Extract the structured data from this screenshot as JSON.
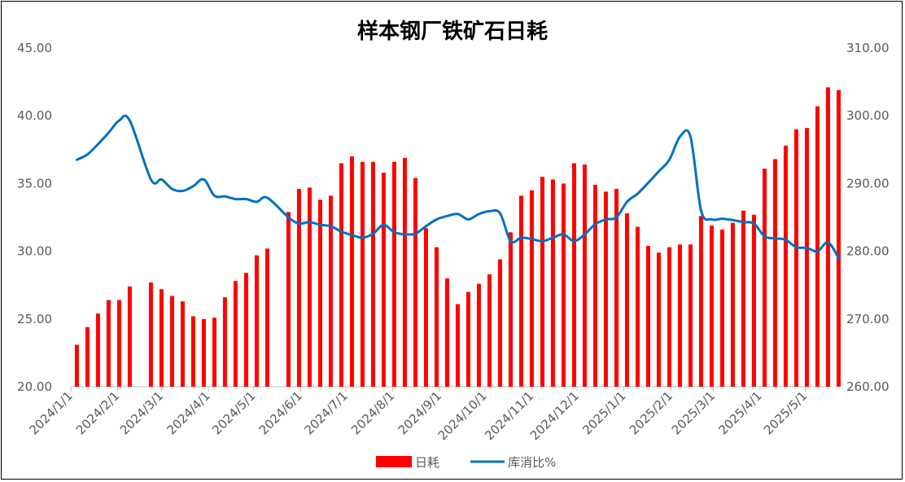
{
  "chart_data": {
    "type": "bar+line",
    "title": "样本钢厂铁矿石日耗",
    "left_axis": {
      "min": 20,
      "max": 45,
      "ticks": [
        "20.00",
        "25.00",
        "30.00",
        "35.00",
        "40.00",
        "45.00"
      ]
    },
    "right_axis": {
      "min": 260,
      "max": 310,
      "ticks": [
        "260.00",
        "270.00",
        "280.00",
        "290.00",
        "300.00",
        "310.00"
      ]
    },
    "x_range": [
      "2024-01-01",
      "2025-05-19"
    ],
    "x_ticks": [
      "2024/1/1",
      "2024/2/1",
      "2024/3/1",
      "2024/4/1",
      "2024/5/1",
      "2024/6/1",
      "2024/7/1",
      "2024/8/1",
      "2024/9/1",
      "2024/10/1",
      "2024/11/1",
      "2024/12/1",
      "2025/1/1",
      "2025/2/1",
      "2025/3/1",
      "2025/4/1",
      "2025/5/1"
    ],
    "legend": {
      "position": "bottom",
      "items": [
        "日耗",
        "库消比%"
      ]
    },
    "colors": {
      "bar": "#FF0000",
      "line": "#0070C0",
      "axis": "#BFBFBF",
      "text": "#595959"
    },
    "series": [
      {
        "name": "日耗",
        "axis": "left",
        "kind": "bar",
        "points": [
          [
            "2024-01-05",
            23.1
          ],
          [
            "2024-01-12",
            24.4
          ],
          [
            "2024-01-19",
            25.4
          ],
          [
            "2024-01-26",
            26.4
          ],
          [
            "2024-02-02",
            26.4
          ],
          [
            "2024-02-09",
            27.4
          ],
          [
            "2024-02-23",
            27.7
          ],
          [
            "2024-03-01",
            27.2
          ],
          [
            "2024-03-08",
            26.7
          ],
          [
            "2024-03-15",
            26.3
          ],
          [
            "2024-03-22",
            25.2
          ],
          [
            "2024-03-29",
            25.0
          ],
          [
            "2024-04-05",
            25.1
          ],
          [
            "2024-04-12",
            26.6
          ],
          [
            "2024-04-19",
            27.8
          ],
          [
            "2024-04-26",
            28.4
          ],
          [
            "2024-05-03",
            29.7
          ],
          [
            "2024-05-10",
            30.2
          ],
          [
            "2024-05-24",
            32.9
          ],
          [
            "2024-05-31",
            34.6
          ],
          [
            "2024-06-07",
            34.7
          ],
          [
            "2024-06-14",
            33.8
          ],
          [
            "2024-06-21",
            34.1
          ],
          [
            "2024-06-28",
            36.5
          ],
          [
            "2024-07-05",
            37.0
          ],
          [
            "2024-07-12",
            36.6
          ],
          [
            "2024-07-19",
            36.6
          ],
          [
            "2024-07-26",
            35.8
          ],
          [
            "2024-08-02",
            36.6
          ],
          [
            "2024-08-09",
            36.9
          ],
          [
            "2024-08-16",
            35.4
          ],
          [
            "2024-08-23",
            31.7
          ],
          [
            "2024-08-30",
            30.3
          ],
          [
            "2024-09-06",
            28.0
          ],
          [
            "2024-09-13",
            26.1
          ],
          [
            "2024-09-20",
            27.0
          ],
          [
            "2024-09-27",
            27.6
          ],
          [
            "2024-10-04",
            28.3
          ],
          [
            "2024-10-11",
            29.4
          ],
          [
            "2024-10-18",
            31.4
          ],
          [
            "2024-10-25",
            34.1
          ],
          [
            "2024-11-01",
            34.5
          ],
          [
            "2024-11-08",
            35.5
          ],
          [
            "2024-11-15",
            35.3
          ],
          [
            "2024-11-22",
            35.0
          ],
          [
            "2024-11-29",
            36.5
          ],
          [
            "2024-12-06",
            36.4
          ],
          [
            "2024-12-13",
            34.9
          ],
          [
            "2024-12-20",
            34.4
          ],
          [
            "2024-12-27",
            34.6
          ],
          [
            "2025-01-03",
            32.8
          ],
          [
            "2025-01-10",
            31.8
          ],
          [
            "2025-01-17",
            30.4
          ],
          [
            "2025-01-24",
            29.9
          ],
          [
            "2025-01-31",
            30.3
          ],
          [
            "2025-02-07",
            30.5
          ],
          [
            "2025-02-14",
            30.5
          ],
          [
            "2025-02-21",
            32.6
          ],
          [
            "2025-02-28",
            31.9
          ],
          [
            "2025-03-07",
            31.6
          ],
          [
            "2025-03-14",
            32.1
          ],
          [
            "2025-03-21",
            33.0
          ],
          [
            "2025-03-28",
            32.7
          ],
          [
            "2025-04-04",
            36.1
          ],
          [
            "2025-04-11",
            36.8
          ],
          [
            "2025-04-18",
            37.8
          ],
          [
            "2025-04-25",
            39.0
          ],
          [
            "2025-05-02",
            39.1
          ],
          [
            "2025-05-09",
            40.7
          ],
          [
            "2025-05-16",
            42.1
          ],
          [
            "2025-05-23",
            41.9
          ]
        ]
      },
      {
        "name": "库消比%",
        "axis": "right",
        "kind": "line",
        "points": [
          [
            "2024-01-05",
            293.5
          ],
          [
            "2024-01-12",
            294.3
          ],
          [
            "2024-01-19",
            295.8
          ],
          [
            "2024-01-26",
            297.5
          ],
          [
            "2024-02-02",
            299.3
          ],
          [
            "2024-02-09",
            299.3
          ],
          [
            "2024-02-23",
            290.6
          ],
          [
            "2024-03-01",
            290.6
          ],
          [
            "2024-03-08",
            289.2
          ],
          [
            "2024-03-15",
            288.9
          ],
          [
            "2024-03-22",
            289.6
          ],
          [
            "2024-03-29",
            290.6
          ],
          [
            "2024-04-05",
            288.2
          ],
          [
            "2024-04-12",
            288.1
          ],
          [
            "2024-04-19",
            287.7
          ],
          [
            "2024-04-26",
            287.7
          ],
          [
            "2024-05-03",
            287.3
          ],
          [
            "2024-05-10",
            287.9
          ],
          [
            "2024-05-24",
            285.0
          ],
          [
            "2024-05-31",
            284.1
          ],
          [
            "2024-06-07",
            284.3
          ],
          [
            "2024-06-14",
            283.9
          ],
          [
            "2024-06-21",
            283.7
          ],
          [
            "2024-06-28",
            282.9
          ],
          [
            "2024-07-05",
            282.4
          ],
          [
            "2024-07-12",
            282.0
          ],
          [
            "2024-07-19",
            282.6
          ],
          [
            "2024-07-26",
            283.9
          ],
          [
            "2024-08-02",
            282.8
          ],
          [
            "2024-08-09",
            282.5
          ],
          [
            "2024-08-16",
            282.6
          ],
          [
            "2024-08-23",
            283.7
          ],
          [
            "2024-08-30",
            284.7
          ],
          [
            "2024-09-06",
            285.2
          ],
          [
            "2024-09-13",
            285.5
          ],
          [
            "2024-09-20",
            284.7
          ],
          [
            "2024-09-27",
            285.5
          ],
          [
            "2024-10-04",
            285.9
          ],
          [
            "2024-10-11",
            285.6
          ],
          [
            "2024-10-18",
            281.5
          ],
          [
            "2024-10-25",
            282.0
          ],
          [
            "2024-11-01",
            281.8
          ],
          [
            "2024-11-08",
            281.5
          ],
          [
            "2024-11-15",
            282.0
          ],
          [
            "2024-11-22",
            282.5
          ],
          [
            "2024-11-29",
            281.5
          ],
          [
            "2024-12-06",
            282.5
          ],
          [
            "2024-12-13",
            284.0
          ],
          [
            "2024-12-20",
            284.7
          ],
          [
            "2024-12-27",
            285.0
          ],
          [
            "2025-01-03",
            287.3
          ],
          [
            "2025-01-10",
            288.5
          ],
          [
            "2025-01-17",
            290.1
          ],
          [
            "2025-01-24",
            291.8
          ],
          [
            "2025-01-31",
            293.5
          ],
          [
            "2025-02-07",
            296.9
          ],
          [
            "2025-02-14",
            296.9
          ],
          [
            "2025-02-21",
            286.0
          ],
          [
            "2025-02-28",
            284.7
          ],
          [
            "2025-03-07",
            284.8
          ],
          [
            "2025-03-14",
            284.6
          ],
          [
            "2025-03-21",
            284.3
          ],
          [
            "2025-03-28",
            284.1
          ],
          [
            "2025-04-04",
            282.2
          ],
          [
            "2025-04-11",
            281.9
          ],
          [
            "2025-04-18",
            281.7
          ],
          [
            "2025-04-25",
            280.6
          ],
          [
            "2025-05-02",
            280.5
          ],
          [
            "2025-05-09",
            280.0
          ],
          [
            "2025-05-16",
            281.3
          ],
          [
            "2025-05-23",
            279.0
          ]
        ]
      }
    ]
  }
}
